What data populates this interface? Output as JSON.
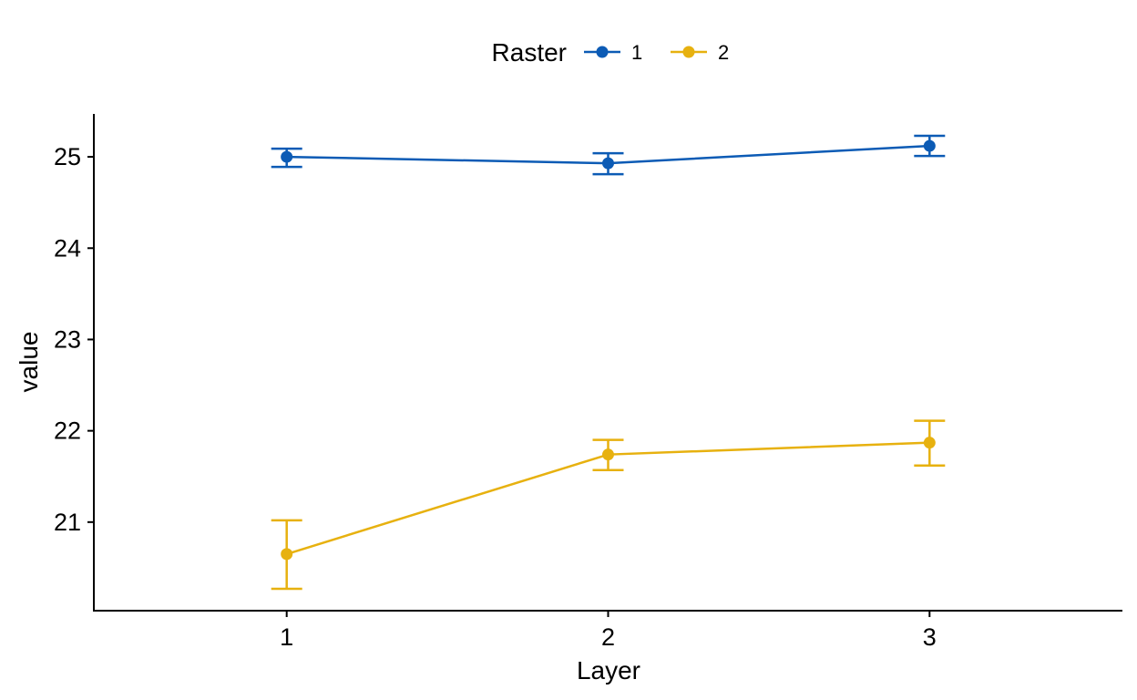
{
  "chart_data": {
    "type": "line",
    "xlabel": "Layer",
    "ylabel": "value",
    "categories": [
      "1",
      "2",
      "3"
    ],
    "ylim": [
      20.03,
      25.47
    ],
    "yticks": [
      21,
      22,
      23,
      24,
      25
    ],
    "xlim": [
      0.4,
      3.6
    ],
    "grid": false,
    "legend": {
      "title": "Raster",
      "position": "top"
    },
    "error_bars": true,
    "series": [
      {
        "name": "1",
        "color": "#0c5bb5",
        "values": [
          25.0,
          24.93,
          25.12
        ],
        "lower": [
          24.89,
          24.81,
          25.01
        ],
        "upper": [
          25.09,
          25.04,
          25.23
        ]
      },
      {
        "name": "2",
        "color": "#e7b10f",
        "values": [
          20.65,
          21.74,
          21.87
        ],
        "lower": [
          20.27,
          21.57,
          21.62
        ],
        "upper": [
          21.02,
          21.9,
          22.11
        ]
      }
    ]
  }
}
